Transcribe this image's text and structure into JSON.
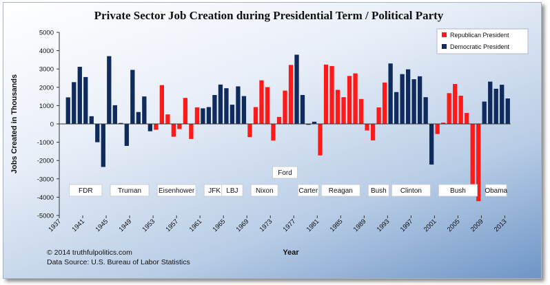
{
  "chart_data": {
    "type": "bar",
    "title": "Private Sector Job Creation during Presidential Term / Political Party",
    "xlabel": "Year",
    "ylabel": "Jobs Created in Thousands",
    "ylim": [
      -5000,
      5000
    ],
    "y_ticks": [
      5000,
      4000,
      3000,
      2000,
      1000,
      0,
      -1000,
      -2000,
      -3000,
      -4000,
      -5000
    ],
    "x_ticks": [
      1937,
      1941,
      1945,
      1949,
      1953,
      1957,
      1961,
      1965,
      1969,
      1973,
      1977,
      1981,
      1985,
      1989,
      1993,
      1997,
      2001,
      2005,
      2009,
      2013
    ],
    "grid": false,
    "legend_position": "top-right",
    "series": [
      {
        "name": "Republican President",
        "color": "#ff1a1a"
      },
      {
        "name": "Democratic President",
        "color": "#0f2a5c"
      }
    ],
    "x": [
      1938,
      1939,
      1940,
      1941,
      1942,
      1943,
      1944,
      1945,
      1946,
      1947,
      1948,
      1949,
      1950,
      1951,
      1952,
      1953,
      1954,
      1955,
      1956,
      1957,
      1958,
      1959,
      1960,
      1961,
      1962,
      1963,
      1964,
      1965,
      1966,
      1967,
      1968,
      1969,
      1970,
      1971,
      1972,
      1973,
      1974,
      1975,
      1976,
      1977,
      1978,
      1979,
      1980,
      1981,
      1982,
      1983,
      1984,
      1985,
      1986,
      1987,
      1988,
      1989,
      1990,
      1991,
      1992,
      1993,
      1994,
      1995,
      1996,
      1997,
      1998,
      1999,
      2000,
      2001,
      2002,
      2003,
      2004,
      2005,
      2006,
      2007,
      2008,
      2009,
      2010,
      2011,
      2012,
      2013
    ],
    "values": [
      1450,
      2280,
      3120,
      2560,
      420,
      -1000,
      -2350,
      3700,
      1020,
      50,
      -1200,
      2950,
      650,
      1500,
      -400,
      -320,
      2120,
      520,
      -700,
      -280,
      1420,
      -820,
      900,
      850,
      920,
      1580,
      2150,
      1950,
      1050,
      2050,
      1520,
      -720,
      920,
      2380,
      2010,
      -910,
      380,
      1820,
      3220,
      3780,
      1580,
      -50,
      120,
      -1720,
      3240,
      3160,
      1860,
      1460,
      2620,
      2760,
      1360,
      -360,
      -900,
      900,
      2260,
      3300,
      1740,
      2720,
      2980,
      2440,
      2600,
      1460,
      -2220,
      -550,
      70,
      1680,
      2180,
      1540,
      600,
      -3800,
      -4220,
      1220,
      2310,
      1920,
      2140,
      1390
    ],
    "party": [
      "D",
      "D",
      "D",
      "D",
      "D",
      "D",
      "D",
      "D",
      "D",
      "D",
      "D",
      "D",
      "D",
      "D",
      "D",
      "R",
      "R",
      "R",
      "R",
      "R",
      "R",
      "R",
      "R",
      "D",
      "D",
      "D",
      "D",
      "D",
      "D",
      "D",
      "D",
      "R",
      "R",
      "R",
      "R",
      "R",
      "R",
      "R",
      "R",
      "D",
      "D",
      "D",
      "D",
      "R",
      "R",
      "R",
      "R",
      "R",
      "R",
      "R",
      "R",
      "R",
      "R",
      "R",
      "R",
      "D",
      "D",
      "D",
      "D",
      "D",
      "D",
      "D",
      "D",
      "R",
      "R",
      "R",
      "R",
      "R",
      "R",
      "R",
      "R",
      "D",
      "D",
      "D",
      "D",
      "D"
    ],
    "president_labels": [
      {
        "name": "FDR",
        "from": 1938,
        "to": 1944
      },
      {
        "name": "Truman",
        "from": 1945,
        "to": 1952
      },
      {
        "name": "Eisenhower",
        "from": 1953,
        "to": 1960
      },
      {
        "name": "JFK",
        "from": 1961,
        "to": 1963
      },
      {
        "name": "LBJ",
        "from": 1964,
        "to": 1968
      },
      {
        "name": "Nixon",
        "from": 1969,
        "to": 1974
      },
      {
        "name": "Ford",
        "from": 1974,
        "to": 1976
      },
      {
        "name": "Carter",
        "from": 1977,
        "to": 1980
      },
      {
        "name": "Reagan",
        "from": 1981,
        "to": 1988
      },
      {
        "name": "Bush",
        "from": 1989,
        "to": 1992
      },
      {
        "name": "Clinton",
        "from": 1993,
        "to": 2000
      },
      {
        "name": "Bush",
        "from": 2001,
        "to": 2008
      },
      {
        "name": "Obama",
        "from": 2009,
        "to": 2013
      }
    ]
  },
  "footer": {
    "copyright": "© 2014  truthfulpolitics.com",
    "source": "Data Source:  U.S. Bureau of Labor Statistics"
  }
}
